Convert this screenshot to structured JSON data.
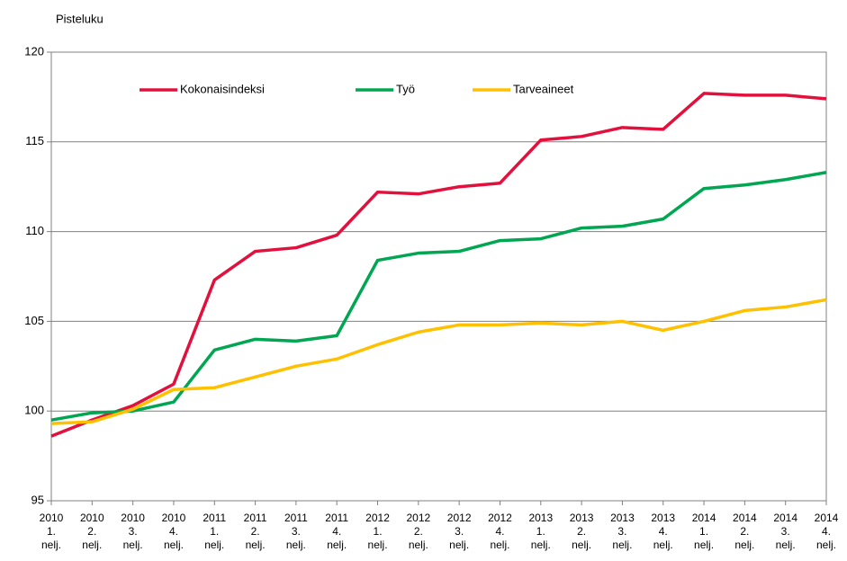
{
  "chart_data": {
    "type": "line",
    "ylabel": "Pisteluku",
    "categories": [
      [
        "2010",
        "1.",
        "nelj."
      ],
      [
        "2010",
        "2.",
        "nelj."
      ],
      [
        "2010",
        "3.",
        "nelj."
      ],
      [
        "2010",
        "4.",
        "nelj."
      ],
      [
        "2011",
        "1.",
        "nelj."
      ],
      [
        "2011",
        "2.",
        "nelj."
      ],
      [
        "2011",
        "3.",
        "nelj."
      ],
      [
        "2011",
        "4.",
        "nelj."
      ],
      [
        "2012",
        "1.",
        "nelj."
      ],
      [
        "2012",
        "2.",
        "nelj."
      ],
      [
        "2012",
        "3.",
        "nelj."
      ],
      [
        "2012",
        "4.",
        "nelj."
      ],
      [
        "2013",
        "1.",
        "nelj."
      ],
      [
        "2013",
        "2.",
        "nelj."
      ],
      [
        "2013",
        "3.",
        "nelj."
      ],
      [
        "2013",
        "4.",
        "nelj."
      ],
      [
        "2014",
        "1.",
        "nelj."
      ],
      [
        "2014",
        "2.",
        "nelj."
      ],
      [
        "2014",
        "3.",
        "nelj."
      ],
      [
        "2014",
        "4.",
        "nelj."
      ]
    ],
    "series": [
      {
        "name": "Kokonaisindeksi",
        "color": "#e2103c",
        "values": [
          98.6,
          99.5,
          100.3,
          101.5,
          107.3,
          108.9,
          109.1,
          109.8,
          112.2,
          112.1,
          112.5,
          112.7,
          115.1,
          115.3,
          115.8,
          115.7,
          117.7,
          117.6,
          117.6,
          117.4
        ]
      },
      {
        "name": "Työ",
        "color": "#00a651",
        "values": [
          99.5,
          99.9,
          100.0,
          100.5,
          103.4,
          104.0,
          103.9,
          104.2,
          108.4,
          108.8,
          108.9,
          109.5,
          109.6,
          110.2,
          110.3,
          110.7,
          112.4,
          112.6,
          112.9,
          113.3
        ]
      },
      {
        "name": "Tarveaineet",
        "color": "#ffc000",
        "values": [
          99.3,
          99.4,
          100.1,
          101.2,
          101.3,
          101.9,
          102.5,
          102.9,
          103.7,
          104.4,
          104.8,
          104.8,
          104.9,
          104.8,
          105.0,
          104.5,
          105.0,
          105.6,
          105.8,
          106.2
        ]
      }
    ],
    "ylim": [
      95,
      120
    ],
    "yticks": [
      95,
      100,
      105,
      110,
      115,
      120
    ],
    "grid": true,
    "legend": "top"
  }
}
